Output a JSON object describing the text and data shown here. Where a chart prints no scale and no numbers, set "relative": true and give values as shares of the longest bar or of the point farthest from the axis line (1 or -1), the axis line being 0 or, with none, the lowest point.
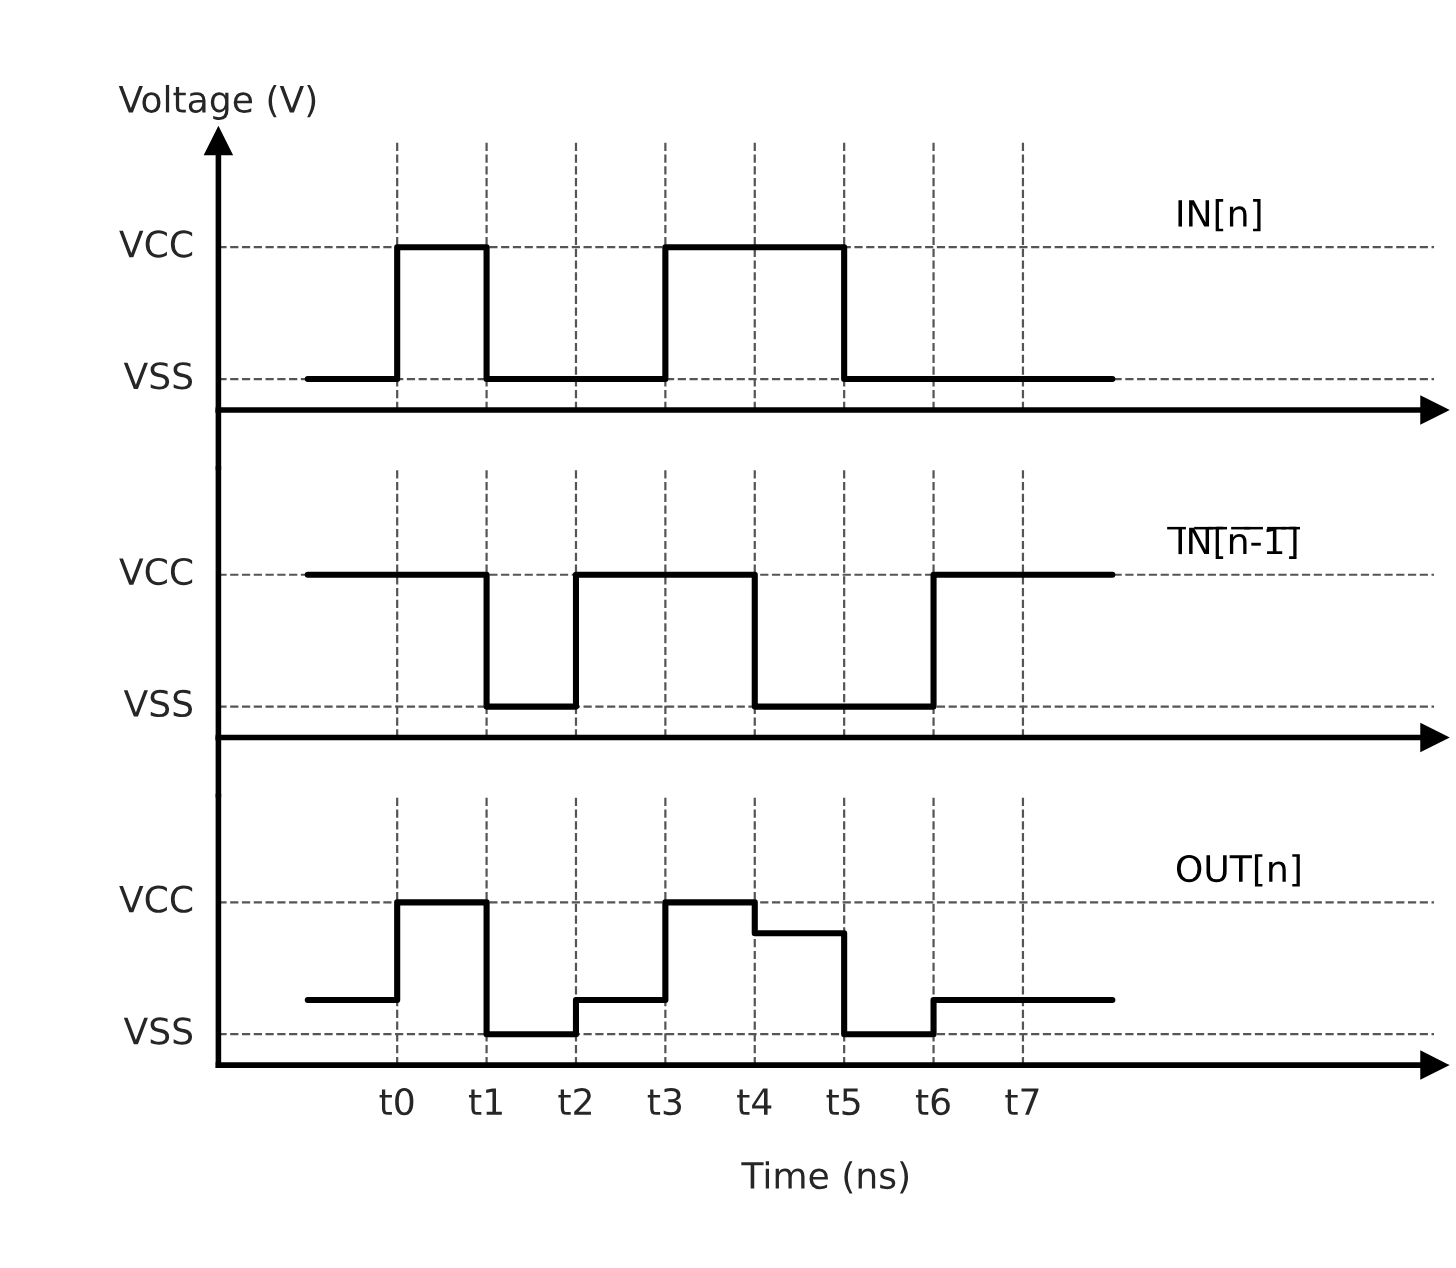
{
  "chart_data": [
    {
      "type": "step",
      "ylabel": "Voltage (V)",
      "relative": true,
      "tick_labels": false,
      "grid": "x",
      "marker": "none",
      "line_style": "solid",
      "annotations": [
        "VCC",
        "VSS"
      ],
      "series": [
        {
          "name": "IN[n]",
          "color": "#000000",
          "values": [
            0.19,
            1,
            0.19,
            0.19,
            1,
            1,
            0.19,
            0.19,
            0.19,
            0.19
          ]
        }
      ]
    },
    {
      "type": "step",
      "relative": true,
      "tick_labels": false,
      "grid": "x",
      "marker": "none",
      "line_style": "solid",
      "annotations": [
        "VCC",
        "VSS"
      ],
      "series": [
        {
          "name": "I̅N̅[̅n̅-̅1̅]̅",
          "color": "#000000",
          "values": [
            1,
            1,
            0.19,
            1,
            1,
            0.19,
            0.19,
            1,
            1,
            1
          ]
        }
      ]
    },
    {
      "type": "step",
      "xlabel": "Time (ns)",
      "relative": true,
      "categories": [
        null,
        "t0",
        "t1",
        "t2",
        "t3",
        "t4",
        "t5",
        "t6",
        "t7",
        null
      ],
      "tick_labels": "x",
      "grid": "x",
      "marker": "none",
      "line_style": "solid",
      "annotations": [
        "VCC",
        "VSS"
      ],
      "series": [
        {
          "name": "OUT[n]",
          "color": "#000000",
          "values": [
            0.4,
            1,
            0.19,
            0.4,
            1,
            0.81,
            0.19,
            0.4,
            0.4,
            0.4
          ]
        }
      ]
    }
  ]
}
